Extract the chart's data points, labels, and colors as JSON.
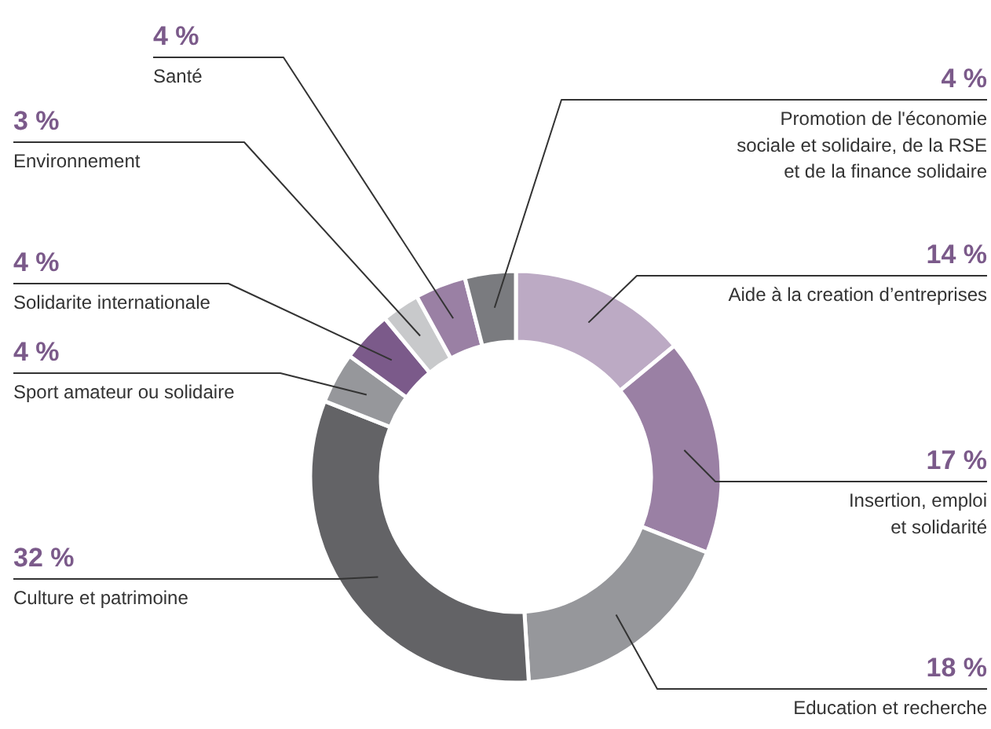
{
  "chart_data": {
    "type": "donut",
    "categories": [
      "Aide à la creation d’entreprises",
      "Insertion, emploi\net solidarité",
      "Education et recherche",
      "Culture et patrimoine",
      "Sport amateur ou solidaire",
      "Solidarite internationale",
      "Environnement",
      "Santé",
      "Promotion de l'économie\nsociale et solidaire, de la RSE\net de la finance solidaire"
    ],
    "values": [
      14,
      17,
      18,
      32,
      4,
      4,
      3,
      4,
      4
    ],
    "value_labels": [
      "14 %",
      "17 %",
      "18 %",
      "32 %",
      "4 %",
      "4 %",
      "3 %",
      "4 %",
      "4 %"
    ],
    "colors": [
      "#bcaac4",
      "#9a80a4",
      "#96979b",
      "#636366",
      "#96979b",
      "#7b5a8a",
      "#c8c9cb",
      "#9a80a4",
      "#7a7b7f"
    ]
  }
}
